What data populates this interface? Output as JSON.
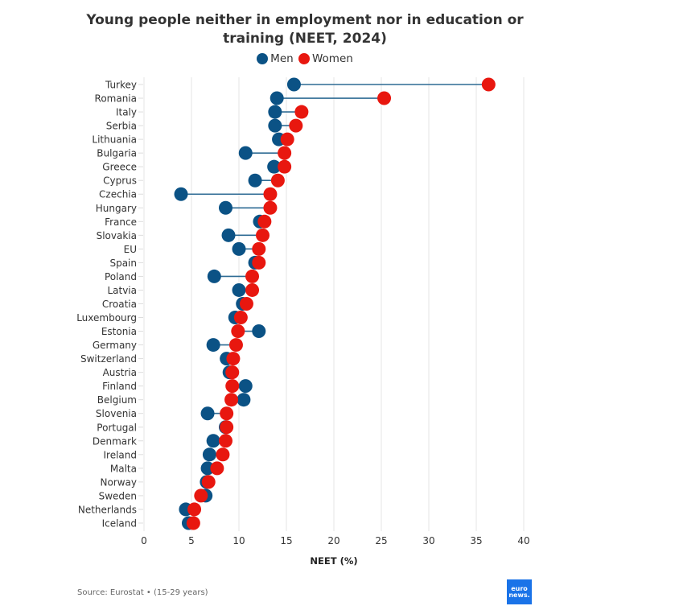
{
  "chart_data": {
    "type": "dumbbell",
    "title": "Young people neither in employment nor in education or training (NEET, 2024)",
    "title_lines": [
      "Young people neither in employment nor in education or",
      "training (NEET, 2024)"
    ],
    "xlabel": "NEET (%)",
    "ylabel": "",
    "xlim": [
      0,
      40
    ],
    "xticks": [
      0,
      5,
      10,
      15,
      20,
      25,
      30,
      35,
      40
    ],
    "grid": true,
    "legend_position": "top-center",
    "categories": [
      "Turkey",
      "Romania",
      "Italy",
      "Serbia",
      "Lithuania",
      "Bulgaria",
      "Greece",
      "Cyprus",
      "Czechia",
      "Hungary",
      "France",
      "Slovakia",
      "EU",
      "Spain",
      "Poland",
      "Latvia",
      "Croatia",
      "Luxembourg",
      "Estonia",
      "Germany",
      "Switzerland",
      "Austria",
      "Finland",
      "Belgium",
      "Slovenia",
      "Portugal",
      "Denmark",
      "Ireland",
      "Malta",
      "Norway",
      "Sweden",
      "Netherlands",
      "Iceland"
    ],
    "series": [
      {
        "name": "Men",
        "color": "#0b5285",
        "values": [
          15.8,
          14.0,
          13.8,
          13.8,
          14.2,
          10.7,
          13.7,
          11.7,
          3.9,
          8.6,
          12.2,
          8.9,
          10.0,
          11.7,
          7.4,
          10.0,
          10.4,
          9.6,
          12.1,
          7.3,
          8.7,
          9.0,
          10.7,
          10.5,
          6.7,
          8.6,
          7.3,
          6.9,
          6.7,
          6.6,
          6.5,
          4.4,
          4.7
        ]
      },
      {
        "name": "Women",
        "color": "#e8170f",
        "values": [
          36.3,
          25.3,
          16.6,
          16.0,
          15.1,
          14.8,
          14.8,
          14.1,
          13.3,
          13.3,
          12.7,
          12.5,
          12.1,
          12.1,
          11.4,
          11.4,
          10.8,
          10.2,
          9.9,
          9.7,
          9.4,
          9.3,
          9.3,
          9.2,
          8.7,
          8.7,
          8.6,
          8.3,
          7.7,
          6.8,
          6.0,
          5.3,
          5.2
        ]
      }
    ],
    "connector_color": "#2e6b94",
    "grid_color": "#e6e6e6"
  },
  "legend": {
    "items": [
      {
        "label": "Men",
        "color": "#0b5285"
      },
      {
        "label": "Women",
        "color": "#e8170f"
      }
    ]
  },
  "footer": {
    "source": "Source: Eurostat • (15-29 years)",
    "logo_line1": "euro",
    "logo_line2": "news."
  }
}
